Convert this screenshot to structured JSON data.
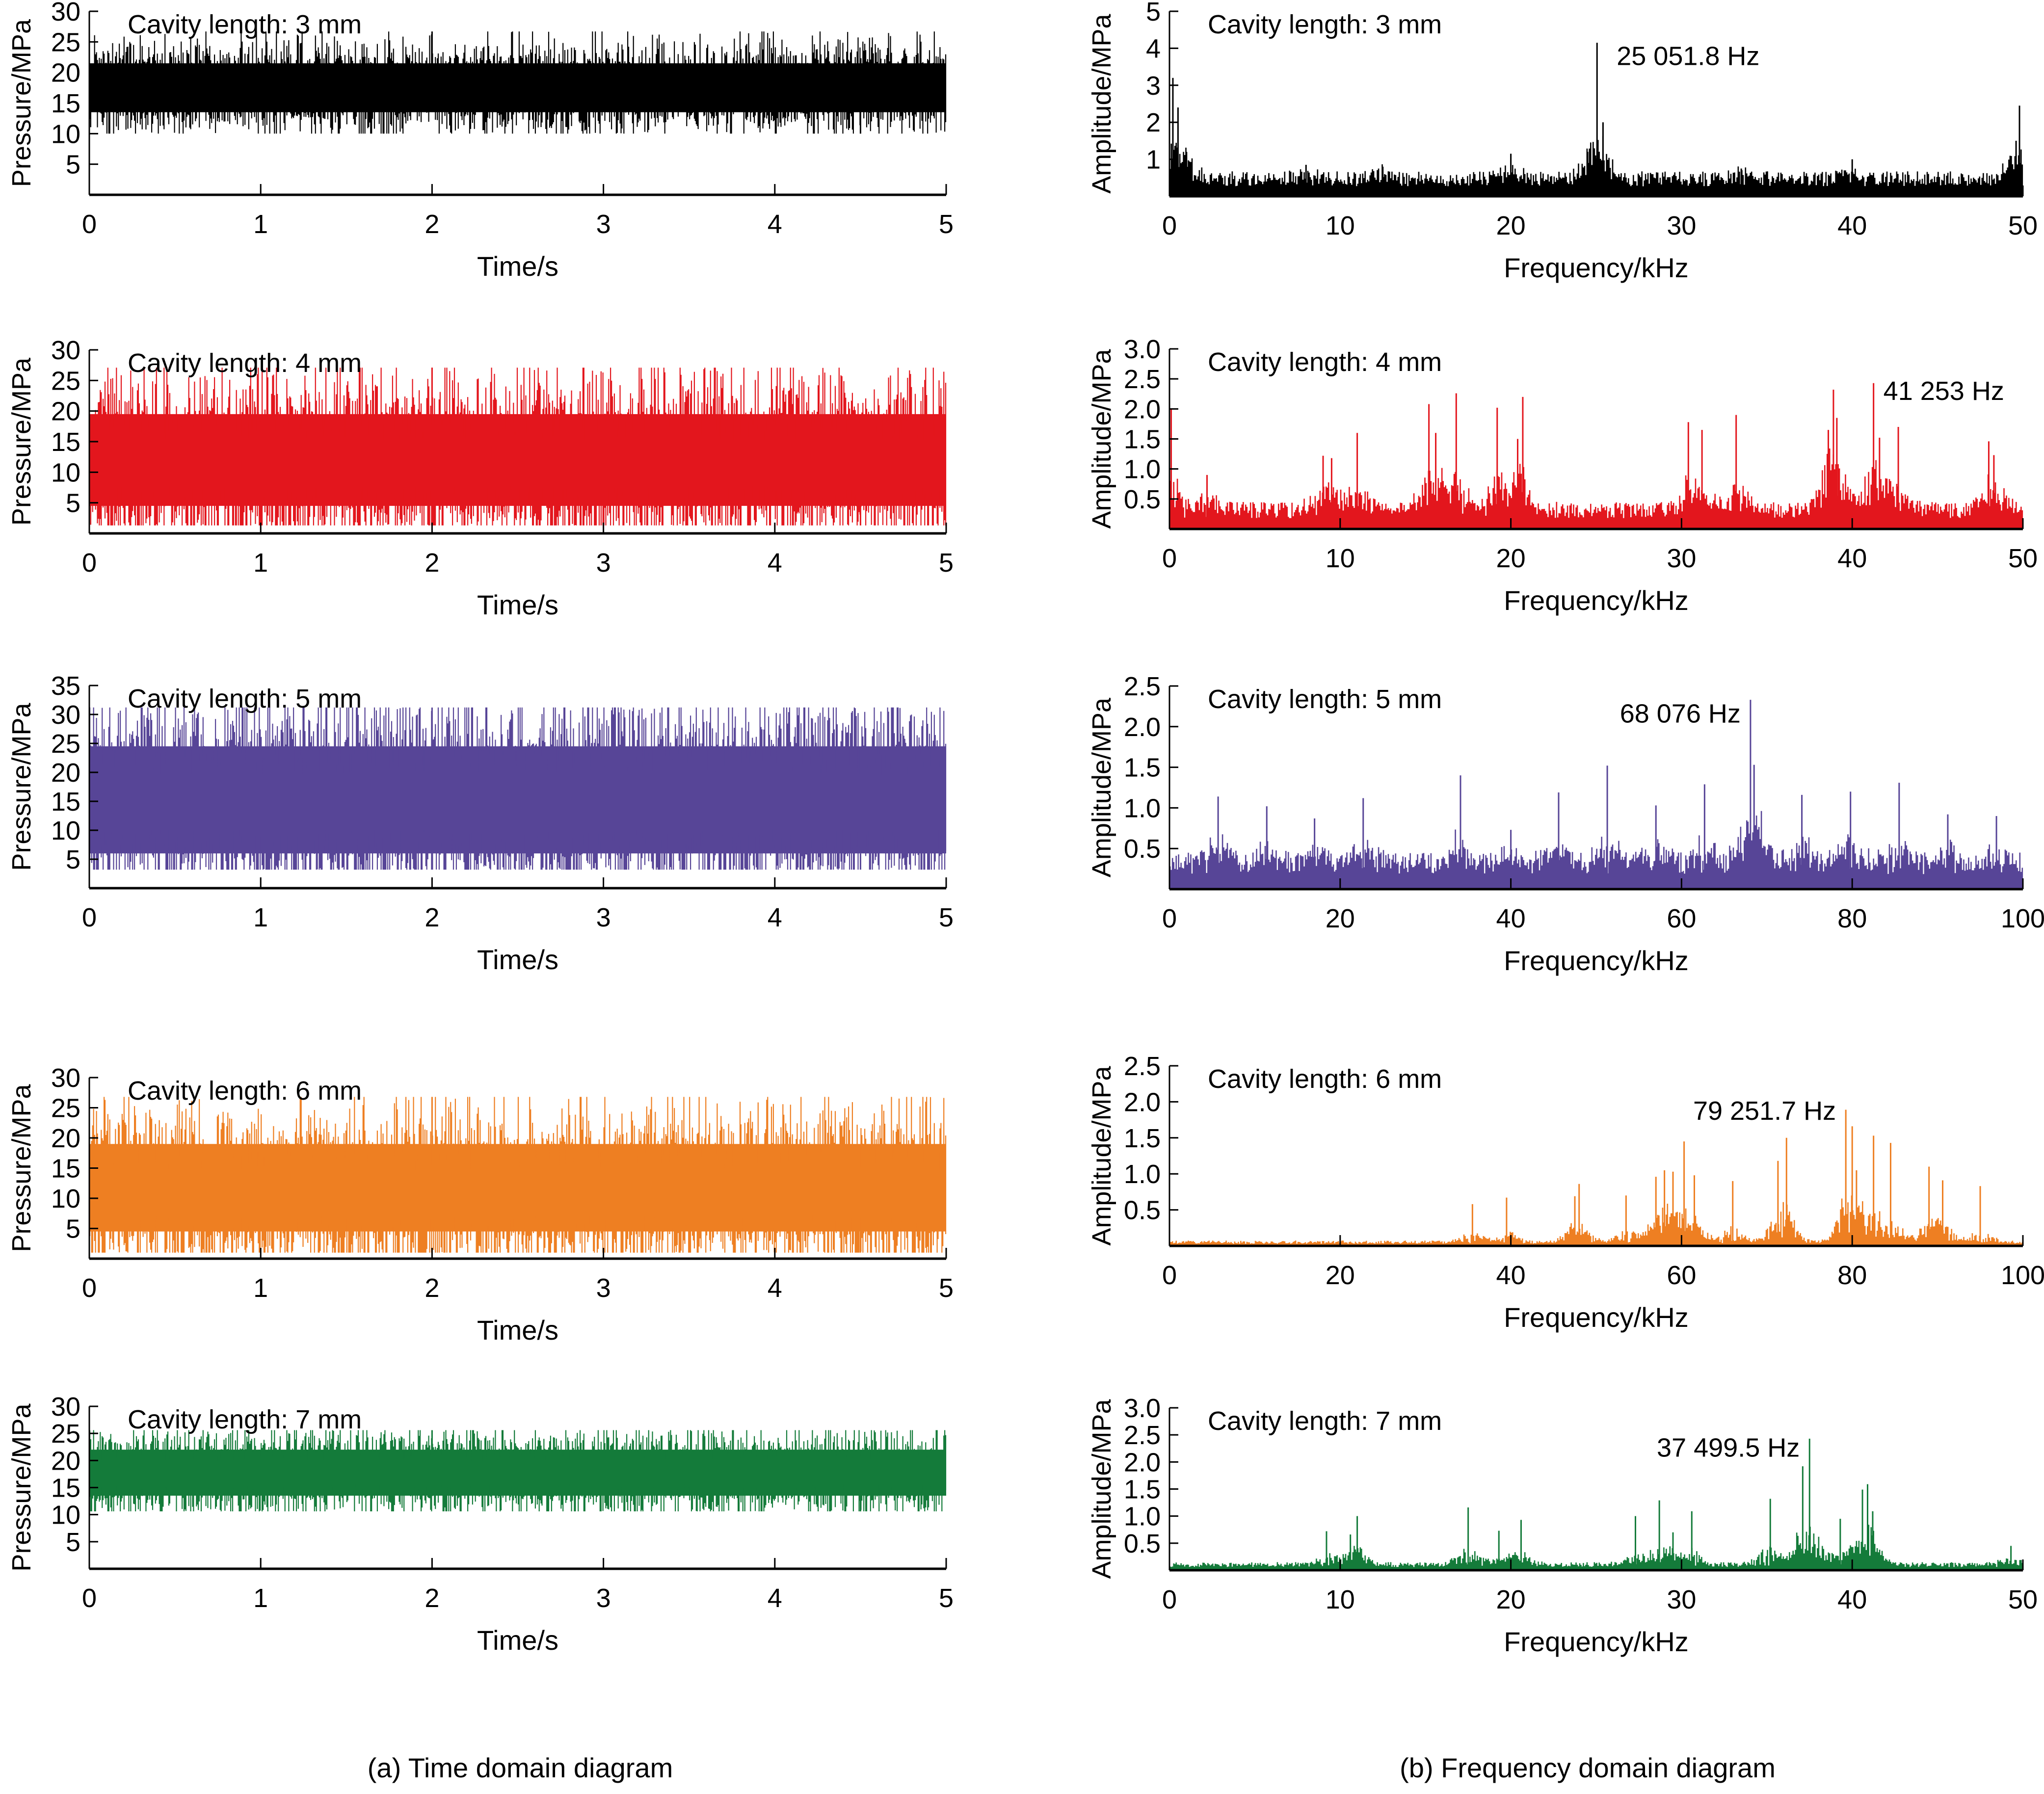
{
  "figure": {
    "captions": [
      "(a) Time domain diagram",
      "(b) Frequency domain diagram"
    ]
  },
  "chart_data": [
    {
      "type": "line",
      "panel": "time",
      "cavity_label": "Cavity length: 3 mm",
      "title": "",
      "xlabel": "Time/s",
      "ylabel": "Pressure/MPa",
      "xlim": [
        0,
        5
      ],
      "ylim": [
        0,
        30
      ],
      "xticks": [
        "0",
        "1",
        "2",
        "3",
        "4",
        "5"
      ],
      "yticks": [
        "5",
        "10",
        "15",
        "20",
        "25",
        "30"
      ],
      "color": "#000000",
      "signal": {
        "mean": 17.5,
        "band_low": 13.5,
        "band_high": 21.5,
        "min": 10.0,
        "max": 26.7
      }
    },
    {
      "type": "line",
      "panel": "time",
      "cavity_label": "Cavity length: 4 mm",
      "title": "",
      "xlabel": "Time/s",
      "ylabel": "Pressure/MPa",
      "xlim": [
        0,
        5
      ],
      "ylim": [
        0,
        30
      ],
      "xticks": [
        "0",
        "1",
        "2",
        "3",
        "4",
        "5"
      ],
      "yticks": [
        "5",
        "10",
        "15",
        "20",
        "25",
        "30"
      ],
      "color": "#e3161d",
      "signal": {
        "mean": 11.5,
        "band_low": 4.5,
        "band_high": 19.5,
        "min": 1.3,
        "max": 27.1
      }
    },
    {
      "type": "line",
      "panel": "time",
      "cavity_label": "Cavity length: 5 mm",
      "title": "",
      "xlabel": "Time/s",
      "ylabel": "Pressure/MPa",
      "xlim": [
        0,
        5
      ],
      "ylim": [
        0,
        35
      ],
      "xticks": [
        "0",
        "1",
        "2",
        "3",
        "4",
        "5"
      ],
      "yticks": [
        "5",
        "10",
        "15",
        "20",
        "25",
        "30",
        "35"
      ],
      "color": "#574597",
      "signal": {
        "mean": 15.0,
        "band_low": 6.0,
        "band_high": 24.5,
        "min": 3.2,
        "max": 31.2
      }
    },
    {
      "type": "line",
      "panel": "time",
      "cavity_label": "Cavity length: 6 mm",
      "title": "",
      "xlabel": "Time/s",
      "ylabel": "Pressure/MPa",
      "xlim": [
        0,
        5
      ],
      "ylim": [
        0,
        30
      ],
      "xticks": [
        "0",
        "1",
        "2",
        "3",
        "4",
        "5"
      ],
      "yticks": [
        "5",
        "10",
        "15",
        "20",
        "25",
        "30"
      ],
      "color": "#ee7f22",
      "signal": {
        "mean": 11.0,
        "band_low": 4.5,
        "band_high": 19.0,
        "min": 1.0,
        "max": 26.8
      }
    },
    {
      "type": "line",
      "panel": "time",
      "cavity_label": "Cavity length: 7 mm",
      "title": "",
      "xlabel": "Time/s",
      "ylabel": "Pressure/MPa",
      "xlim": [
        0,
        5
      ],
      "ylim": [
        0,
        30
      ],
      "xticks": [
        "0",
        "1",
        "2",
        "3",
        "4",
        "5"
      ],
      "yticks": [
        "5",
        "10",
        "15",
        "20",
        "25",
        "30"
      ],
      "color": "#147b3a",
      "signal": {
        "mean": 17.8,
        "band_low": 13.5,
        "band_high": 22.0,
        "min": 10.6,
        "max": 25.6
      }
    },
    {
      "type": "bar",
      "panel": "freq",
      "cavity_label": "Cavity length: 3 mm",
      "title": "",
      "xlabel": "Frequency/kHz",
      "ylabel": "Amplitude/MPa",
      "xlim": [
        0,
        50
      ],
      "ylim": [
        0,
        5
      ],
      "xticks": [
        "0",
        "10",
        "20",
        "30",
        "40",
        "50"
      ],
      "yticks": [
        "1",
        "2",
        "3",
        "4",
        "5"
      ],
      "color": "#000000",
      "annotation": {
        "text": "25 051.8 Hz",
        "x": 25.05,
        "y": 4.15
      },
      "baseline": 0.45,
      "peaks": [
        [
          0.2,
          3.2
        ],
        [
          0.5,
          2.4
        ],
        [
          1.0,
          1.2
        ],
        [
          8.0,
          0.85
        ],
        [
          12.5,
          0.8
        ],
        [
          20.0,
          1.15
        ],
        [
          24.5,
          1.2
        ],
        [
          25.05,
          4.15
        ],
        [
          25.4,
          2.0
        ],
        [
          33.5,
          0.75
        ],
        [
          40.0,
          1.0
        ],
        [
          49.6,
          1.5
        ],
        [
          49.8,
          2.45
        ]
      ]
    },
    {
      "type": "bar",
      "panel": "freq",
      "cavity_label": "Cavity length: 4 mm",
      "title": "",
      "xlabel": "Frequency/kHz",
      "ylabel": "Amplitude/MPa",
      "xlim": [
        0,
        50
      ],
      "ylim": [
        0,
        3.0
      ],
      "xticks": [
        "0",
        "10",
        "20",
        "30",
        "40",
        "50"
      ],
      "yticks": [
        "0.5",
        "1.0",
        "1.5",
        "2.0",
        "2.5",
        "3.0"
      ],
      "color": "#e3161d",
      "annotation": {
        "text": "41 253 Hz",
        "x": 41.25,
        "y": 2.43
      },
      "baseline": 0.3,
      "peaks": [
        [
          0.1,
          2.0
        ],
        [
          2.2,
          0.9
        ],
        [
          9.0,
          1.22
        ],
        [
          9.5,
          1.18
        ],
        [
          11.0,
          1.6
        ],
        [
          15.2,
          2.08
        ],
        [
          15.6,
          1.6
        ],
        [
          16.8,
          2.26
        ],
        [
          19.2,
          2.02
        ],
        [
          20.7,
          2.2
        ],
        [
          20.4,
          1.5
        ],
        [
          30.4,
          1.78
        ],
        [
          31.2,
          1.65
        ],
        [
          33.2,
          1.9
        ],
        [
          38.6,
          1.65
        ],
        [
          38.9,
          2.32
        ],
        [
          39.1,
          1.85
        ],
        [
          41.25,
          2.43
        ],
        [
          41.6,
          1.52
        ],
        [
          42.7,
          1.7
        ],
        [
          48.0,
          1.46
        ],
        [
          48.3,
          1.23
        ]
      ]
    },
    {
      "type": "bar",
      "panel": "freq",
      "cavity_label": "Cavity length: 5 mm",
      "title": "",
      "xlabel": "Frequency/kHz",
      "ylabel": "Amplitude/MPa",
      "xlim": [
        0,
        100
      ],
      "ylim": [
        0,
        2.5
      ],
      "xticks": [
        "0",
        "20",
        "40",
        "60",
        "80",
        "100"
      ],
      "yticks": [
        "0.5",
        "1.0",
        "1.5",
        "2.0",
        "2.5"
      ],
      "color": "#574597",
      "annotation": {
        "text": "68 076 Hz",
        "x": 68.08,
        "y": 2.33
      },
      "baseline": 0.3,
      "peaks": [
        [
          5.7,
          1.14
        ],
        [
          11.4,
          1.02
        ],
        [
          17.0,
          0.87
        ],
        [
          22.7,
          1.12
        ],
        [
          34.1,
          1.4
        ],
        [
          40.0,
          0.73
        ],
        [
          45.6,
          1.19
        ],
        [
          51.3,
          1.52
        ],
        [
          57.0,
          1.03
        ],
        [
          62.7,
          1.29
        ],
        [
          68.08,
          2.33
        ],
        [
          68.5,
          1.53
        ],
        [
          74.1,
          1.16
        ],
        [
          79.8,
          1.2
        ],
        [
          85.5,
          1.31
        ],
        [
          91.2,
          0.92
        ],
        [
          96.9,
          0.9
        ]
      ]
    },
    {
      "type": "bar",
      "panel": "freq",
      "cavity_label": "Cavity length: 6 mm",
      "title": "",
      "xlabel": "Frequency/kHz",
      "ylabel": "Amplitude/MPa",
      "xlim": [
        0,
        100
      ],
      "ylim": [
        0,
        2.5
      ],
      "xticks": [
        "0",
        "20",
        "40",
        "60",
        "80",
        "100"
      ],
      "yticks": [
        "0.5",
        "1.0",
        "1.5",
        "2.0",
        "2.5"
      ],
      "color": "#ee7f22",
      "annotation": {
        "text": "79 251.7 Hz",
        "x": 79.25,
        "y": 1.89
      },
      "baseline": 0.05,
      "peaks": [
        [
          35.5,
          0.58
        ],
        [
          39.5,
          0.67
        ],
        [
          47.5,
          0.69
        ],
        [
          48.0,
          0.86
        ],
        [
          53.5,
          0.7
        ],
        [
          57.0,
          0.96
        ],
        [
          58.0,
          1.05
        ],
        [
          59.0,
          1.03
        ],
        [
          60.3,
          1.45
        ],
        [
          61.5,
          0.98
        ],
        [
          66.0,
          0.9
        ],
        [
          71.3,
          1.18
        ],
        [
          72.3,
          1.5
        ],
        [
          79.25,
          1.89
        ],
        [
          80.0,
          1.66
        ],
        [
          80.5,
          1.05
        ],
        [
          82.5,
          1.53
        ],
        [
          84.5,
          1.43
        ],
        [
          89.0,
          1.1
        ],
        [
          90.6,
          0.91
        ],
        [
          95.0,
          0.83
        ]
      ]
    },
    {
      "type": "bar",
      "panel": "freq",
      "cavity_label": "Cavity length: 7 mm",
      "title": "",
      "xlabel": "Frequency/kHz",
      "ylabel": "Amplitude/MPa",
      "xlim": [
        0,
        50
      ],
      "ylim": [
        0,
        3.0
      ],
      "xticks": [
        "0",
        "10",
        "20",
        "30",
        "40",
        "50"
      ],
      "yticks": [
        "0.5",
        "1.0",
        "1.5",
        "2.0",
        "2.5",
        "3.0"
      ],
      "color": "#147b3a",
      "annotation": {
        "text": "37 499.5 Hz",
        "x": 37.5,
        "y": 2.43
      },
      "baseline": 0.1,
      "peaks": [
        [
          9.2,
          0.72
        ],
        [
          10.6,
          0.66
        ],
        [
          11.0,
          1.0
        ],
        [
          17.5,
          1.16
        ],
        [
          19.3,
          0.73
        ],
        [
          20.6,
          0.93
        ],
        [
          27.3,
          1.0
        ],
        [
          28.7,
          1.29
        ],
        [
          29.5,
          0.7
        ],
        [
          30.6,
          1.09
        ],
        [
          35.2,
          1.32
        ],
        [
          37.1,
          1.92
        ],
        [
          37.5,
          2.43
        ],
        [
          39.3,
          0.95
        ],
        [
          40.6,
          1.49
        ],
        [
          40.9,
          1.59
        ],
        [
          41.2,
          1.09
        ],
        [
          49.3,
          0.45
        ]
      ]
    }
  ]
}
